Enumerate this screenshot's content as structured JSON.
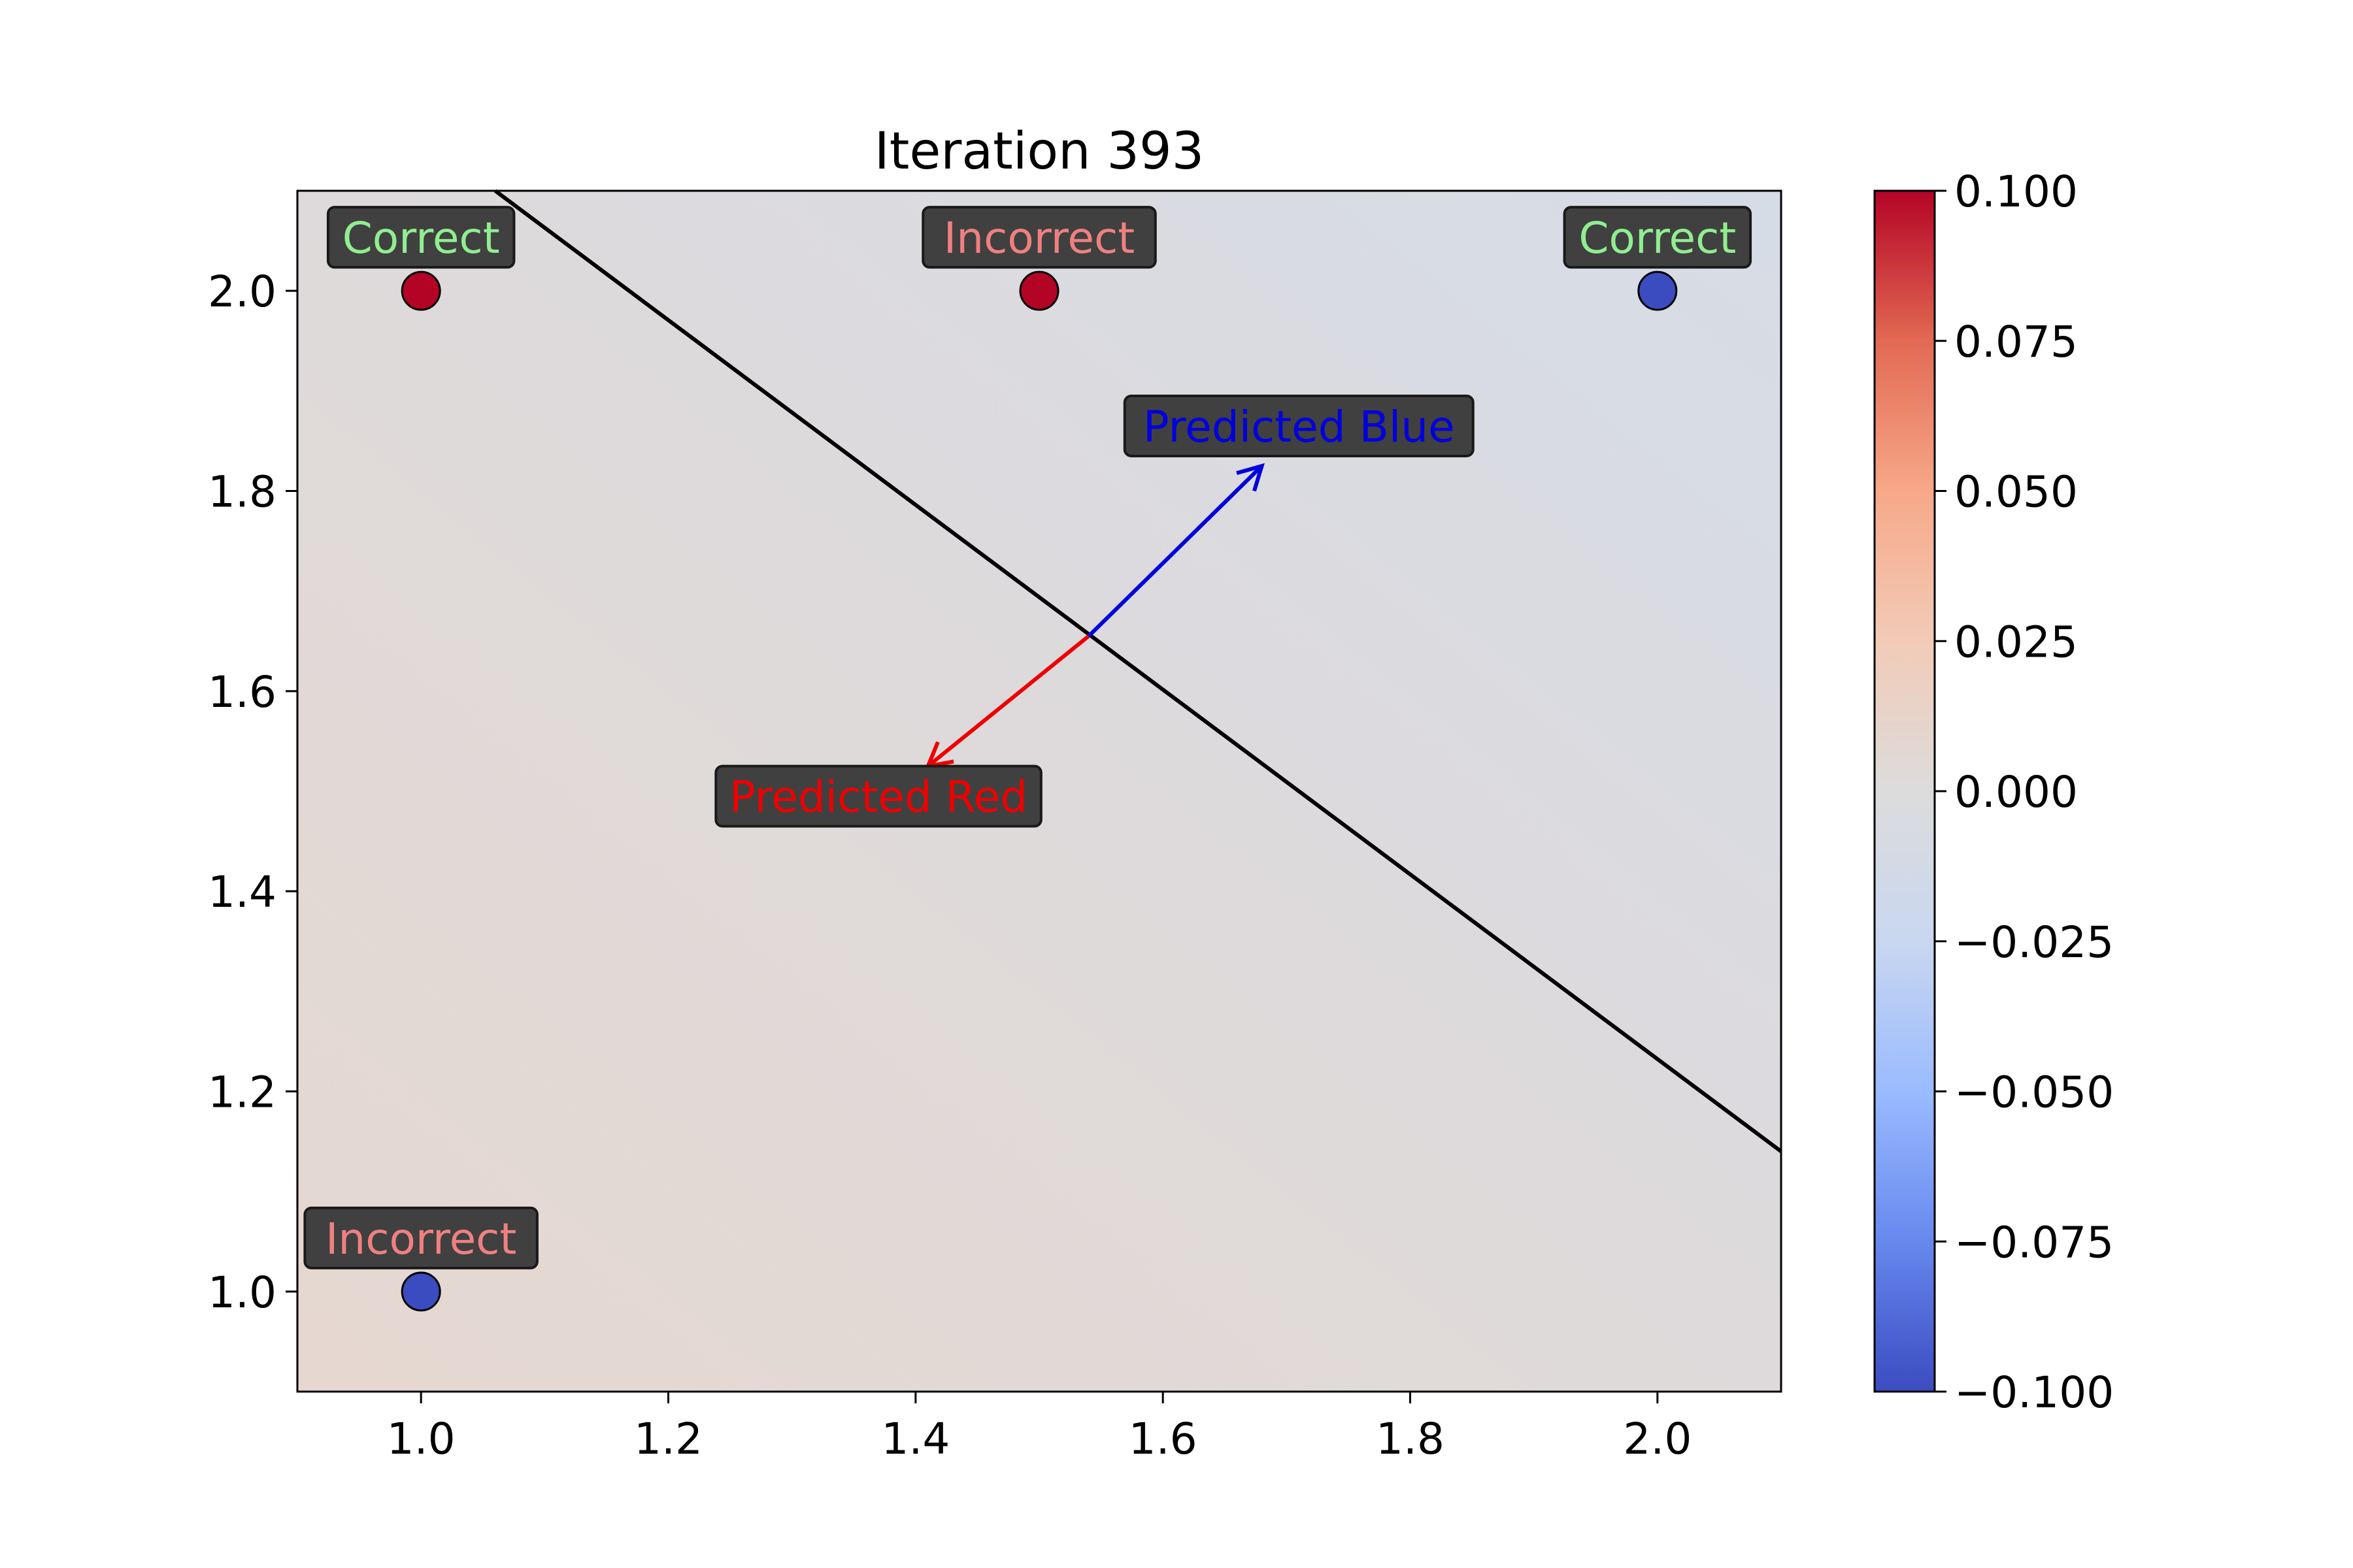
{
  "chart_data": {
    "type": "scatter",
    "title": "Iteration 393",
    "xlabel": "",
    "ylabel": "",
    "xlim": [
      0.9,
      2.1
    ],
    "ylim": [
      0.9,
      2.1
    ],
    "x_ticks": [
      "1.0",
      "1.2",
      "1.4",
      "1.6",
      "1.8",
      "2.0"
    ],
    "y_ticks": [
      "1.0",
      "1.2",
      "1.4",
      "1.6",
      "1.8",
      "2.0"
    ],
    "grid": false,
    "points": [
      {
        "x": 1.0,
        "y": 2.0,
        "color": "#b40426",
        "label": "Correct",
        "label_color": "#90ee90"
      },
      {
        "x": 1.5,
        "y": 2.0,
        "color": "#b40426",
        "label": "Incorrect",
        "label_color": "#f08080"
      },
      {
        "x": 2.0,
        "y": 2.0,
        "color": "#3b4cc0",
        "label": "Correct",
        "label_color": "#90ee90"
      },
      {
        "x": 1.0,
        "y": 1.0,
        "color": "#3b4cc0",
        "label": "Incorrect",
        "label_color": "#f08080"
      }
    ],
    "decision_boundary": {
      "x": [
        1.06,
        2.1
      ],
      "y": [
        2.1,
        1.14
      ],
      "color": "#000000"
    },
    "arrows": [
      {
        "from": [
          1.54,
          1.655
        ],
        "to": [
          1.68,
          1.825
        ],
        "color": "#0000dd",
        "label": "Predicted Blue",
        "label_pos": [
          1.71,
          1.865
        ]
      },
      {
        "from": [
          1.54,
          1.655
        ],
        "to": [
          1.41,
          1.525
        ],
        "color": "#ee0000",
        "label": "Predicted Red",
        "label_pos": [
          1.37,
          1.495
        ]
      }
    ],
    "background_gradient": {
      "bottom_left": "#e6d8d0",
      "top_right": "#d6dce6"
    },
    "colorbar": {
      "min": -0.1,
      "max": 0.1,
      "ticks": [
        "0.100",
        "0.075",
        "0.050",
        "0.025",
        "0.000",
        "−0.025",
        "−0.050",
        "−0.075",
        "−0.100"
      ],
      "colormap": "coolwarm",
      "stops": [
        "#3b4cc0",
        "#6788ee",
        "#9abbff",
        "#c9d7f0",
        "#dddcdc",
        "#f2cbb7",
        "#f7a889",
        "#e26952",
        "#b40426"
      ]
    }
  }
}
